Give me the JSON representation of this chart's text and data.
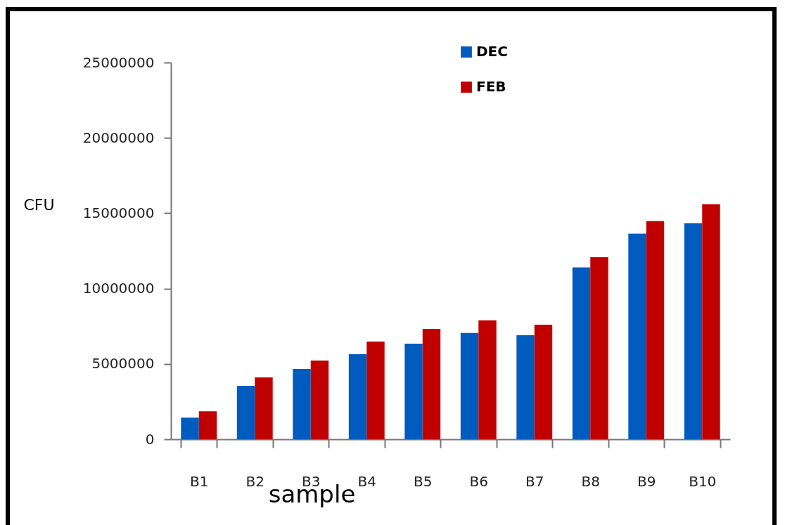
{
  "chart_data": {
    "type": "bar",
    "xlabel": "sample",
    "ylabel": "CFU",
    "categories": [
      "B1",
      "B2",
      "B3",
      "B4",
      "B5",
      "B6",
      "B7",
      "B8",
      "B9",
      "B10"
    ],
    "series": [
      {
        "name": "DEC",
        "color": "#005bbf",
        "values": [
          1430000,
          3540000,
          4660000,
          5640000,
          6340000,
          7050000,
          6900000,
          11400000,
          13640000,
          14340000
        ]
      },
      {
        "name": "FEB",
        "color": "#c00000",
        "values": [
          1850000,
          4100000,
          5220000,
          6480000,
          7320000,
          7890000,
          7600000,
          12080000,
          14480000,
          15600000
        ]
      }
    ],
    "ylim": [
      0,
      25000000
    ],
    "yticks": [
      0,
      5000000,
      10000000,
      15000000,
      20000000,
      25000000
    ],
    "grid": false,
    "legend": "top"
  }
}
